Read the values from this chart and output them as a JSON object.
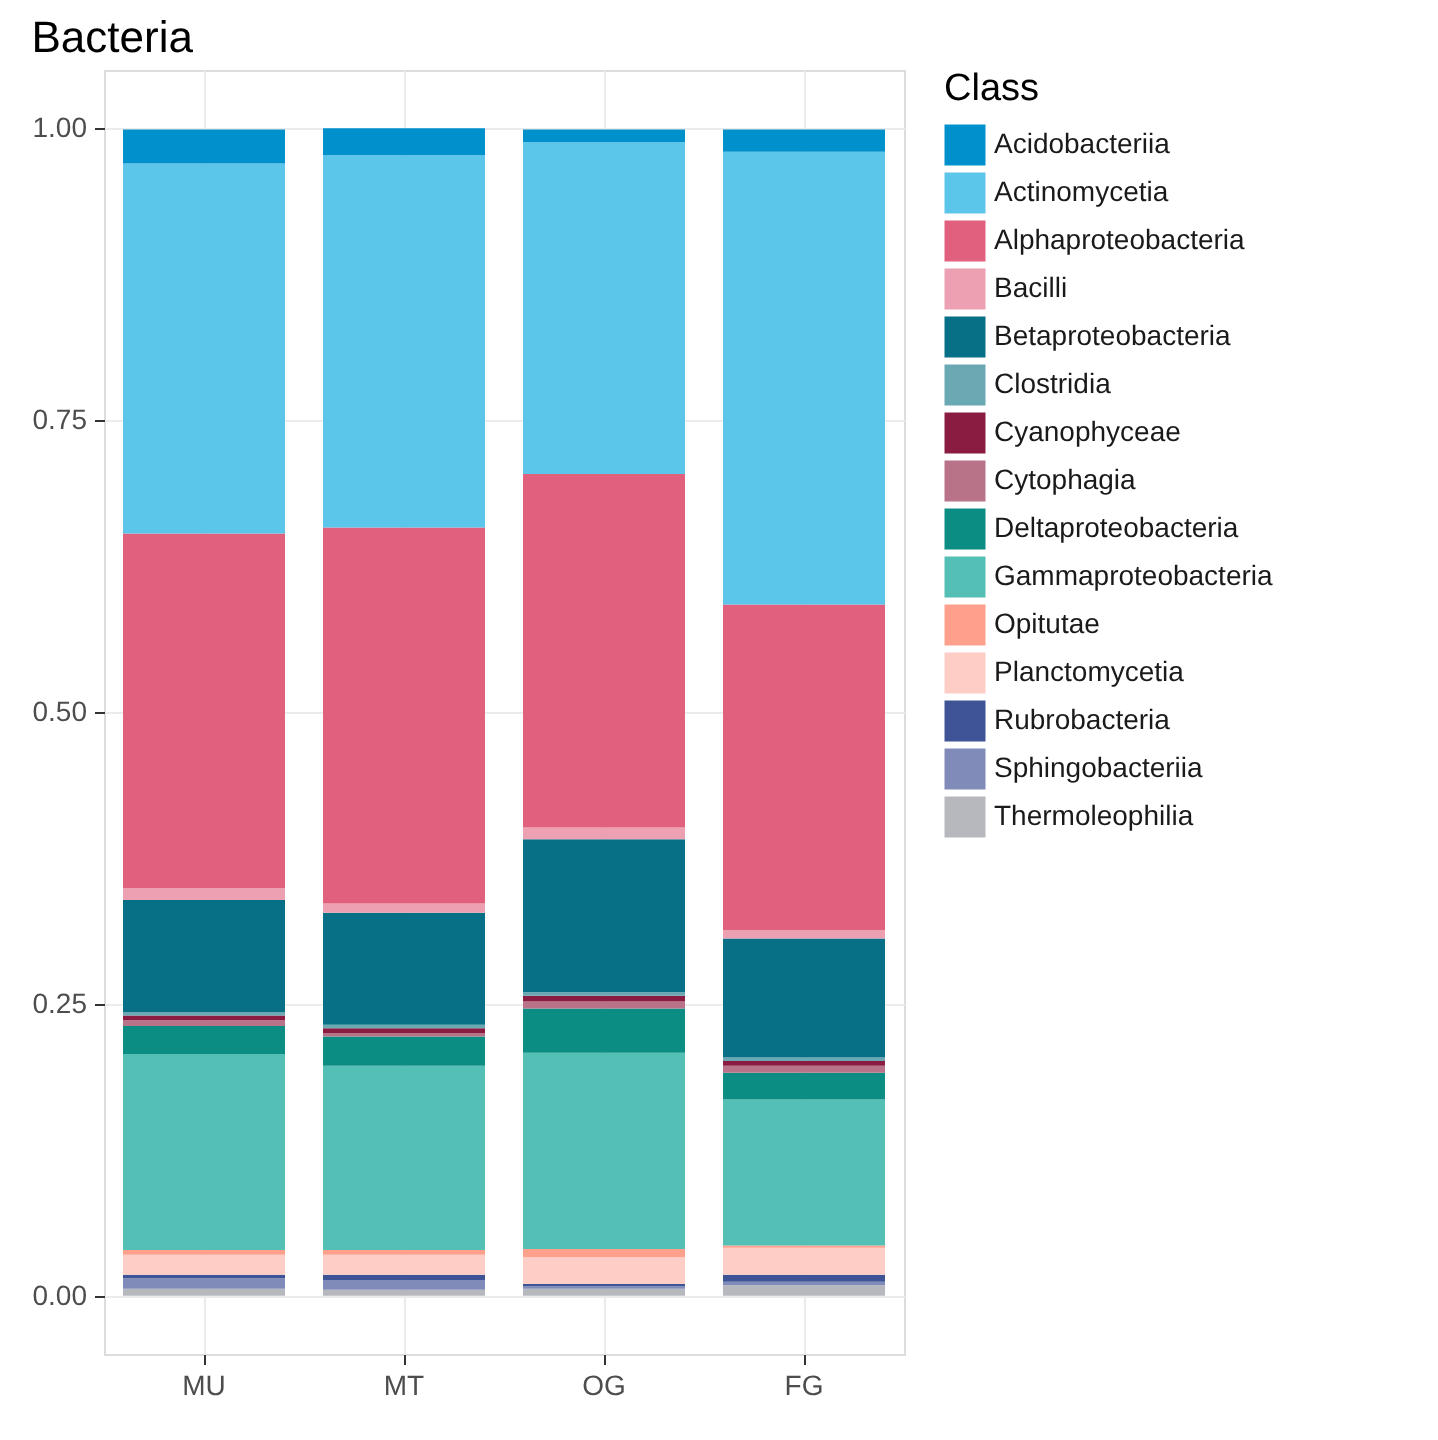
{
  "chart_data": {
    "type": "bar",
    "title": "Bacteria",
    "legend_title": "Class",
    "stacked": true,
    "legend": "right",
    "grid": true,
    "categories": [
      "MU",
      "MT",
      "OG",
      "FG"
    ],
    "ylim": [
      -0.05,
      1.05
    ],
    "yticks": [
      {
        "value": 0,
        "label": "0.00"
      },
      {
        "value": 0.25,
        "label": "0.25"
      },
      {
        "value": 0.5,
        "label": "0.50"
      },
      {
        "value": 0.75,
        "label": "0.75"
      },
      {
        "value": 1,
        "label": "1.00"
      }
    ],
    "series": [
      {
        "name": "Thermoleophilia",
        "color": "#b6b8bd",
        "values": [
          0.006,
          0.005,
          0.006,
          0.009
        ]
      },
      {
        "name": "Sphingobacteriia",
        "color": "#808bb9",
        "values": [
          0.009,
          0.008,
          0.002,
          0.003
        ]
      },
      {
        "name": "Rubrobacteria",
        "color": "#3f5496",
        "values": [
          0.003,
          0.005,
          0.002,
          0.006
        ]
      },
      {
        "name": "Planctomycetia",
        "color": "#fecdc5",
        "values": [
          0.017,
          0.017,
          0.023,
          0.023
        ]
      },
      {
        "name": "Opitutae",
        "color": "#fea08b",
        "values": [
          0.004,
          0.004,
          0.007,
          0.002
        ]
      },
      {
        "name": "Gammaproteobacteria",
        "color": "#54bfb5",
        "values": [
          0.168,
          0.158,
          0.168,
          0.125
        ]
      },
      {
        "name": "Deltaproteobacteria",
        "color": "#0b8d83",
        "values": [
          0.024,
          0.025,
          0.038,
          0.023
        ]
      },
      {
        "name": "Cytophagia",
        "color": "#b87388",
        "values": [
          0.005,
          0.003,
          0.006,
          0.006
        ]
      },
      {
        "name": "Cyanophyceae",
        "color": "#8a1c42",
        "values": [
          0.004,
          0.004,
          0.005,
          0.004
        ]
      },
      {
        "name": "Clostridia",
        "color": "#6aa8b4",
        "values": [
          0.003,
          0.003,
          0.003,
          0.003
        ]
      },
      {
        "name": "Betaproteobacteria",
        "color": "#077086",
        "values": [
          0.096,
          0.096,
          0.131,
          0.102
        ]
      },
      {
        "name": "Bacilli",
        "color": "#eca0b2",
        "values": [
          0.01,
          0.008,
          0.01,
          0.007
        ]
      },
      {
        "name": "Alphaproteobacteria",
        "color": "#e0607e",
        "values": [
          0.304,
          0.322,
          0.303,
          0.279
        ]
      },
      {
        "name": "Actinomycetia",
        "color": "#5bc6ea",
        "values": [
          0.317,
          0.319,
          0.284,
          0.388
        ]
      },
      {
        "name": "Acidobacteriia",
        "color": "#0091cd",
        "values": [
          0.029,
          0.023,
          0.011,
          0.019
        ]
      }
    ]
  }
}
